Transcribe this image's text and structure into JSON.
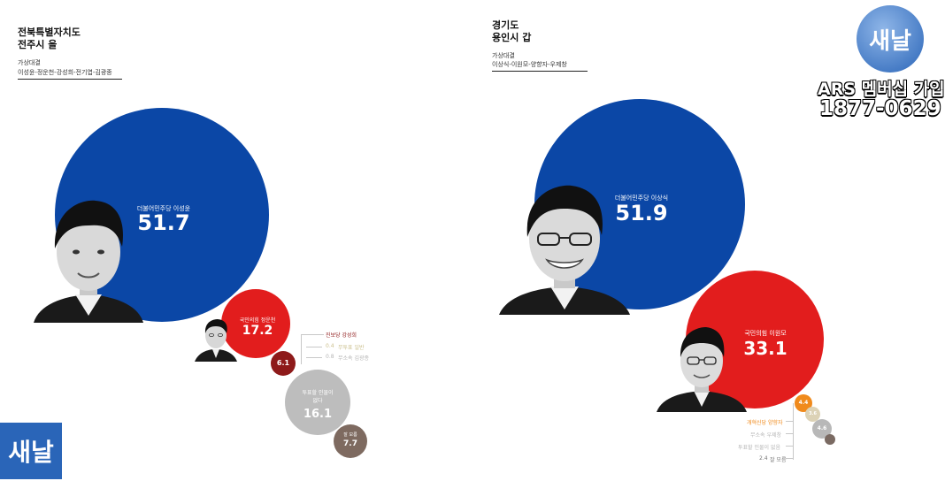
{
  "brand": {
    "name": "새날",
    "color": "#2a65b8"
  },
  "overlay": {
    "ars_line": "ARS 멤버십 가입",
    "phone": "1877-0629"
  },
  "chart_data": [
    {
      "type": "bubble",
      "title_line1": "전북특별자치도",
      "title_line2": "전주시 을",
      "subtitle": "가상대결",
      "candidates_line": "이성윤-정운천-강성희-전기엽-김광종",
      "series": [
        {
          "label": "더불어민주당 이성윤",
          "value": 51.7,
          "value_text": "51.7",
          "color": "#0b47a6"
        },
        {
          "label": "국민의힘 정운천",
          "value": 17.2,
          "value_text": "17.2",
          "color": "#e21d1d"
        },
        {
          "label": "진보당 강성희",
          "value": 6.1,
          "value_text": "6.1",
          "color": "#8e1a1a"
        },
        {
          "label": "무투표 일반",
          "value": 0.4,
          "value_text": "0.4",
          "color": "#e2d3a0"
        },
        {
          "label": "무소속 김광종",
          "value": 0.8,
          "value_text": "0.8",
          "color": "#c9c9c9"
        },
        {
          "label": "투표할 인물이 없다",
          "value": 16.1,
          "value_text": "16.1",
          "color": "#bdbdbd"
        },
        {
          "label": "잘 모름",
          "value": 7.7,
          "value_text": "7.7",
          "color": "#7e6a60"
        }
      ]
    },
    {
      "type": "bubble",
      "title_line1": "경기도",
      "title_line2": "용인시 갑",
      "subtitle": "가상대결",
      "candidates_line": "이상식-이원모-양향자-우제창",
      "series": [
        {
          "label": "더불어민주당 이상식",
          "value": 51.9,
          "value_text": "51.9",
          "color": "#0b47a6"
        },
        {
          "label": "국민의힘 이원모",
          "value": 33.1,
          "value_text": "33.1",
          "color": "#e21d1d"
        },
        {
          "label": "개혁신당 양향자",
          "value": 4.4,
          "value_text": "4.4",
          "color": "#f08a1c"
        },
        {
          "label": "무소속 우제창",
          "value": 3.6,
          "value_text": "3.6",
          "color": "#dcd2b6"
        },
        {
          "label": "투표할 인물이 없음",
          "value": 4.6,
          "value_text": "4.6",
          "color": "#b8b8b8"
        },
        {
          "label": "잘 모름",
          "value": 2.4,
          "value_text": "2.4",
          "color": "#7a6a62"
        }
      ]
    }
  ]
}
